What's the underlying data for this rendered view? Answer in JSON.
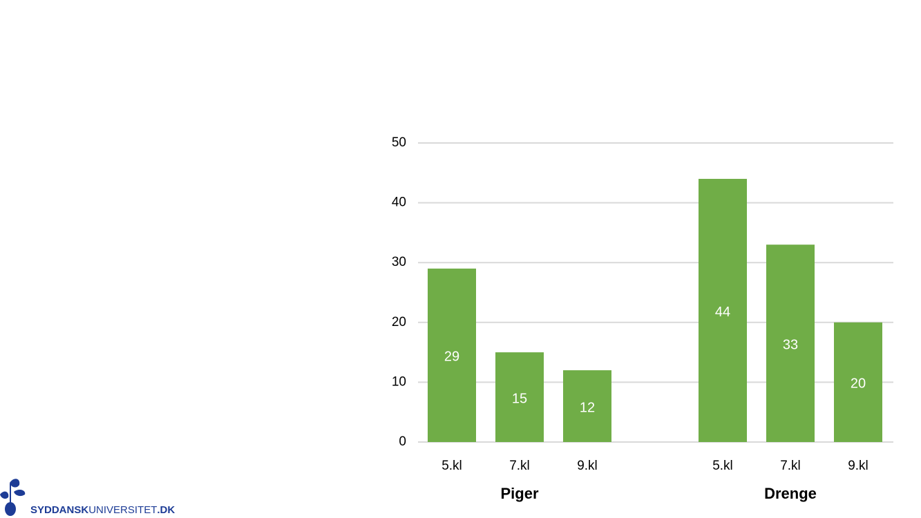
{
  "chart_data": {
    "type": "bar",
    "color": "#70ad47",
    "grid": true,
    "ylim": [
      0,
      50
    ],
    "yticks": [
      0,
      10,
      20,
      30,
      40,
      50
    ],
    "groups": [
      {
        "name": "Piger",
        "categories": [
          "5.kl",
          "7.kl",
          "9.kl"
        ],
        "values": [
          29,
          15,
          12
        ]
      },
      {
        "name": "Drenge",
        "categories": [
          "5.kl",
          "7.kl",
          "9.kl"
        ],
        "values": [
          44,
          33,
          20
        ]
      }
    ]
  },
  "logo": {
    "parts": [
      "SYDDANSK",
      "UNIVERSITET",
      ".DK"
    ]
  }
}
